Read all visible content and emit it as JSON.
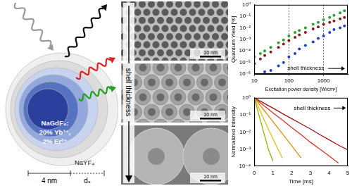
{
  "schematic": {
    "core_composition": [
      "NaGdF₄:",
      "20% Yb³⁺,",
      "2% Er³⁺"
    ],
    "shell_material": "NaYF₄",
    "core_size_label": "4 nm",
    "shell_thickness_label": "dₛ"
  },
  "tem_images": {
    "arrow_label": "shell thickness",
    "scale_bars": [
      "10 nm",
      "10 nm",
      "10 nm"
    ]
  },
  "chart_data": [
    {
      "type": "scatter",
      "y_label": "Quantum Yield [%]",
      "x_label": "Excitation power density [W/cm²]",
      "annotation": "shell thickness",
      "log": true,
      "grid": true,
      "marker": "circle",
      "xlim": [
        10,
        5000
      ],
      "xticks": [
        10,
        100,
        1000
      ],
      "ylim": [
        1e-06,
        1
      ],
      "yticks": [
        {
          "value": 1e-06,
          "label": "10⁻⁶"
        },
        {
          "value": 1e-05,
          "label": "10⁻⁵"
        },
        {
          "value": 0.0001,
          "label": "10⁻⁴"
        },
        {
          "value": 0.001,
          "label": "10⁻³"
        },
        {
          "value": 0.01,
          "label": "10⁻²"
        },
        {
          "value": 0.1,
          "label": "10⁻¹"
        },
        {
          "value": 1,
          "label": "10⁰"
        }
      ],
      "x": [
        10,
        15,
        20,
        30,
        50,
        70,
        100,
        150,
        200,
        300,
        500,
        700,
        1000,
        1500,
        2000,
        3000,
        4000
      ],
      "series": [
        {
          "color": "#2ca02c",
          "values": [
            3e-05,
            6e-05,
            0.0001,
            0.0002,
            0.0005,
            0.0009,
            0.002,
            0.004,
            0.006,
            0.01,
            0.02,
            0.03,
            0.05,
            0.08,
            0.12,
            0.2,
            0.3
          ]
        },
        {
          "color": "#8b1a1a",
          "values": [
            8e-06,
            2e-05,
            4e-05,
            8e-05,
            0.0002,
            0.0004,
            0.0008,
            0.0015,
            0.0025,
            0.004,
            0.008,
            0.012,
            0.02,
            0.03,
            0.04,
            0.06,
            0.08
          ]
        },
        {
          "color": "#1f3fd0",
          "values": [
            null,
            null,
            1.5e-06,
            2e-06,
            5e-06,
            1e-05,
            3e-05,
            6e-05,
            0.00015,
            0.0003,
            0.0006,
            0.0012,
            0.002,
            0.004,
            0.007,
            0.01,
            0.015
          ]
        }
      ]
    },
    {
      "type": "line",
      "y_label": "Normalized Intensity",
      "x_label": "Time [ms]",
      "annotation": "shell thickness",
      "log": "y",
      "grid": false,
      "line_style": "solid",
      "xlim": [
        0,
        5
      ],
      "xticks": [
        0,
        1,
        2,
        3,
        4,
        5
      ],
      "ylim": [
        0.0001,
        1
      ],
      "yticks": [
        {
          "value": 0.0001,
          "label": "10⁻⁴"
        },
        {
          "value": 0.001,
          "label": "10⁻³"
        },
        {
          "value": 0.01,
          "label": "10⁻²"
        },
        {
          "value": 0.1,
          "label": "10⁻¹"
        },
        {
          "value": 1,
          "label": "10⁰"
        }
      ],
      "x": [
        0,
        0.25,
        0.5,
        0.75,
        1,
        1.5,
        2,
        2.5,
        3,
        3.5,
        4,
        4.5,
        5
      ],
      "series": [
        {
          "color": "#8db600",
          "values": [
            1,
            0.1,
            0.01,
            0.001,
            0.0002,
            null,
            null,
            null,
            null,
            null,
            null,
            null,
            null
          ]
        },
        {
          "color": "#e8c000",
          "values": [
            1,
            0.25,
            0.06,
            0.015,
            0.004,
            0.0003,
            null,
            null,
            null,
            null,
            null,
            null,
            null
          ]
        },
        {
          "color": "#f08c00",
          "values": [
            1,
            0.45,
            0.2,
            0.09,
            0.04,
            0.008,
            0.0016,
            0.0003,
            null,
            null,
            null,
            null,
            null
          ]
        },
        {
          "color": "#e03020",
          "values": [
            1,
            0.6,
            0.35,
            0.22,
            0.13,
            0.05,
            0.018,
            0.007,
            0.0025,
            0.001,
            0.0004,
            0.00015,
            null
          ]
        },
        {
          "color": "#a01010",
          "values": [
            1,
            0.7,
            0.5,
            0.35,
            0.25,
            0.12,
            0.06,
            0.03,
            0.015,
            0.007,
            0.0035,
            0.0017,
            0.0009
          ]
        }
      ]
    }
  ]
}
